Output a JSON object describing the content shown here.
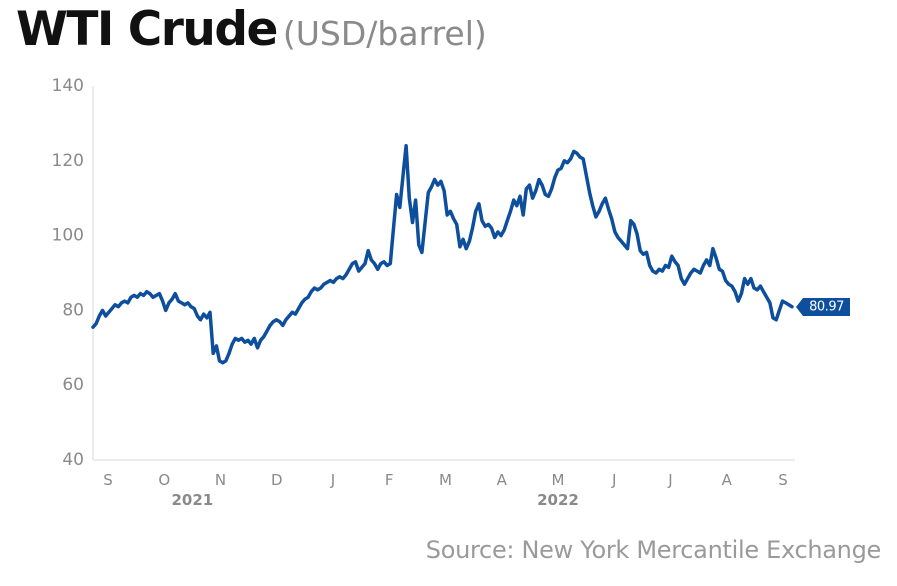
{
  "chart_data": {
    "type": "line",
    "title": "WTI Crude",
    "subtitle": "(USD/barrel)",
    "source": "Source: New York Mercantile Exchange",
    "ylim": [
      40,
      140
    ],
    "yticks": [
      "40",
      "60",
      "80",
      "100",
      "120",
      "140"
    ],
    "grid": false,
    "xticks": [
      "S",
      "O",
      "N",
      "D",
      "J",
      "F",
      "M",
      "A",
      "M",
      "J",
      "J",
      "A",
      "S"
    ],
    "years": [
      "2021",
      "2022"
    ],
    "last_value_label": "80.97",
    "line_color": "#0d4f9c",
    "series": [
      {
        "values": [
          75.5,
          76.5,
          78.5,
          80.0,
          78.5,
          79.5,
          80.5,
          81.5,
          81.0,
          82.0,
          82.5,
          82.0,
          83.5,
          84.0,
          83.5,
          84.5,
          84.0,
          85.0,
          84.5,
          83.5,
          84.0,
          84.5,
          82.5,
          80.0,
          82.0,
          83.0,
          84.5,
          82.5,
          82.0,
          81.5,
          82.0,
          81.0,
          80.5,
          78.5,
          77.5,
          79.0,
          78.0,
          79.5,
          68.5,
          70.5,
          66.5,
          66.0,
          66.5,
          68.5,
          71.0,
          72.5,
          72.0,
          72.5,
          71.5,
          72.0,
          71.0,
          72.5,
          70.0,
          72.0,
          73.0,
          74.5,
          76.0,
          77.0,
          77.5,
          77.0,
          76.0,
          77.5,
          78.5,
          79.5,
          79.0,
          80.5,
          82.0,
          83.0,
          83.5,
          85.0,
          86.0,
          85.5,
          86.0,
          87.0,
          87.5,
          88.0,
          87.5,
          88.5,
          89.0,
          88.5,
          89.5,
          91.0,
          92.5,
          93.0,
          90.5,
          91.5,
          92.5,
          96.0,
          93.5,
          92.5,
          91.0,
          92.5,
          93.0,
          92.0,
          92.5,
          102.0,
          111.0,
          107.5,
          116.0,
          124.0,
          110.0,
          103.5,
          109.5,
          97.5,
          95.5,
          103.5,
          111.5,
          113.0,
          115.0,
          113.5,
          114.5,
          112.0,
          105.5,
          106.5,
          104.5,
          103.0,
          97.0,
          99.0,
          96.5,
          98.5,
          102.0,
          106.5,
          108.5,
          104.0,
          102.5,
          103.0,
          102.0,
          99.5,
          101.0,
          100.0,
          101.5,
          104.0,
          106.5,
          109.5,
          108.0,
          110.5,
          105.5,
          112.5,
          113.5,
          110.0,
          112.0,
          115.0,
          113.5,
          111.0,
          110.5,
          112.5,
          115.5,
          117.5,
          118.0,
          120.0,
          119.5,
          120.5,
          122.5,
          122.0,
          121.0,
          120.5,
          116.0,
          111.5,
          108.0,
          105.0,
          106.5,
          108.5,
          110.0,
          107.0,
          104.5,
          101.0,
          99.5,
          98.5,
          97.5,
          96.5,
          104.0,
          103.0,
          100.5,
          96.0,
          95.0,
          95.5,
          92.0,
          90.5,
          90.0,
          91.0,
          90.5,
          92.0,
          91.5,
          94.5,
          93.0,
          92.0,
          88.5,
          87.0,
          88.5,
          90.0,
          91.0,
          90.5,
          90.0,
          92.0,
          93.5,
          92.0,
          96.5,
          94.0,
          91.0,
          90.5,
          88.0,
          87.0,
          86.5,
          85.0,
          82.5,
          84.5,
          88.5,
          87.0,
          88.5,
          86.0,
          85.5,
          86.5,
          85.0,
          83.5,
          82.0,
          78.0,
          77.5,
          80.0,
          82.5,
          82.0,
          81.5,
          81.0
        ]
      }
    ]
  }
}
